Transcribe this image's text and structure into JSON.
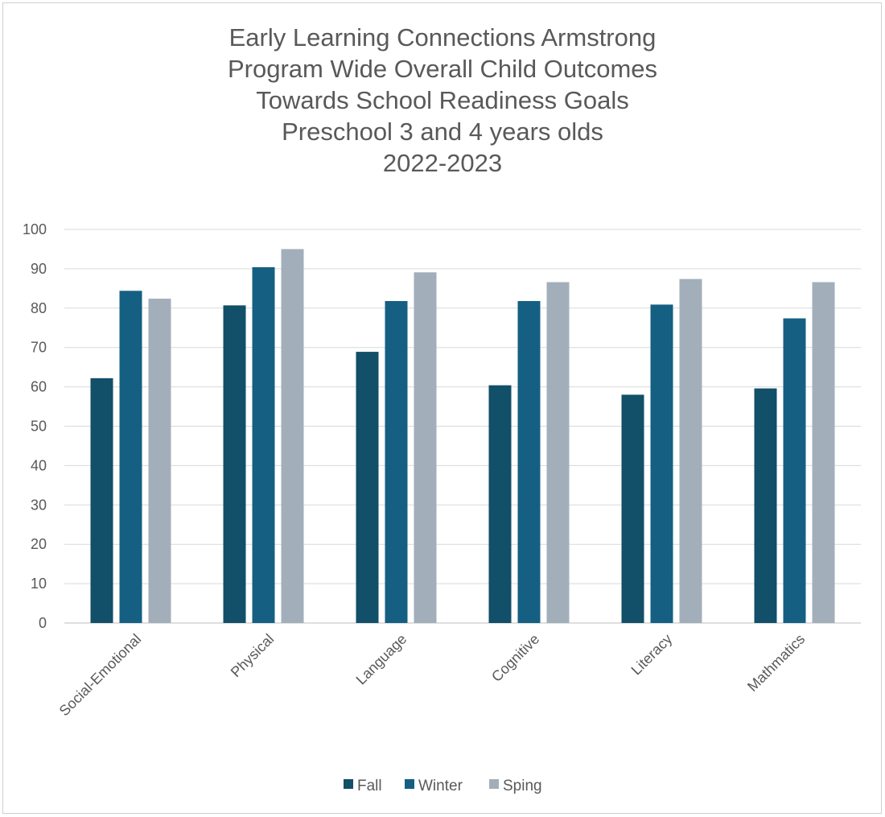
{
  "chart_data": {
    "type": "bar",
    "title_lines": [
      "Early Learning Connections Armstrong",
      "Program Wide Overall Child Outcomes",
      "Towards School Readiness Goals",
      "Preschool 3 and 4 years olds",
      "2022-2023"
    ],
    "categories": [
      "Social-Emotional",
      "Physical",
      "Language",
      "Cognitive",
      "Literacy",
      "Mathmatics"
    ],
    "series": [
      {
        "name": "Fall",
        "color": "#124f68",
        "values": [
          62.2,
          80.7,
          68.9,
          60.4,
          58.0,
          59.6
        ]
      },
      {
        "name": "Winter",
        "color": "#156082",
        "values": [
          84.4,
          90.4,
          81.8,
          81.8,
          80.9,
          77.4
        ]
      },
      {
        "name": "Sping",
        "color": "#a2afba",
        "values": [
          82.4,
          95.0,
          89.1,
          86.6,
          87.4,
          86.6
        ]
      }
    ],
    "ylim": [
      0,
      100
    ],
    "yticks": [
      "0",
      "10",
      "20",
      "30",
      "40",
      "50",
      "60",
      "70",
      "80",
      "90",
      "100"
    ],
    "grid": true,
    "legend_position": "bottom"
  }
}
